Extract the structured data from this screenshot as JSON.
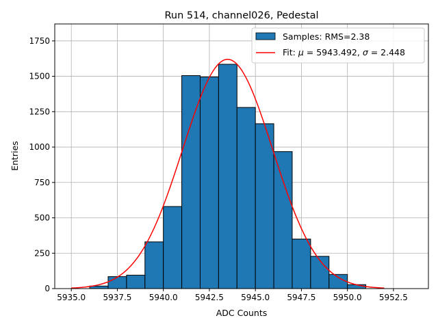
{
  "chart_data": {
    "type": "bar",
    "title": "Run 514, channel026, Pedestal",
    "xlabel": "ADC Counts",
    "ylabel": "Entries",
    "xlim": [
      5934.1,
      5954.4
    ],
    "ylim": [
      0,
      1870
    ],
    "grid": true,
    "legend_position": "top-right",
    "x_ticks": [
      5935.0,
      5937.5,
      5940.0,
      5942.5,
      5945.0,
      5947.5,
      5950.0,
      5952.5
    ],
    "x_tick_labels": [
      "5935.0",
      "5937.5",
      "5940.0",
      "5942.5",
      "5945.0",
      "5947.5",
      "5950.0",
      "5952.5"
    ],
    "y_ticks": [
      0,
      250,
      500,
      750,
      1000,
      1250,
      1500,
      1750
    ],
    "y_tick_labels": [
      "0",
      "250",
      "500",
      "750",
      "1000",
      "1250",
      "1500",
      "1750"
    ],
    "bins": [
      {
        "x0": 5935,
        "x1": 5936,
        "value": 0
      },
      {
        "x0": 5936,
        "x1": 5937,
        "value": 18
      },
      {
        "x0": 5937,
        "x1": 5938,
        "value": 85
      },
      {
        "x0": 5938,
        "x1": 5939,
        "value": 95
      },
      {
        "x0": 5939,
        "x1": 5940,
        "value": 330
      },
      {
        "x0": 5940,
        "x1": 5941,
        "value": 580
      },
      {
        "x0": 5941,
        "x1": 5942,
        "value": 1505
      },
      {
        "x0": 5942,
        "x1": 5943,
        "value": 1495
      },
      {
        "x0": 5943,
        "x1": 5944,
        "value": 1585
      },
      {
        "x0": 5944,
        "x1": 5945,
        "value": 1280
      },
      {
        "x0": 5945,
        "x1": 5946,
        "value": 1165
      },
      {
        "x0": 5946,
        "x1": 5947,
        "value": 968
      },
      {
        "x0": 5947,
        "x1": 5948,
        "value": 350
      },
      {
        "x0": 5948,
        "x1": 5949,
        "value": 228
      },
      {
        "x0": 5949,
        "x1": 5950,
        "value": 100
      },
      {
        "x0": 5950,
        "x1": 5951,
        "value": 28
      },
      {
        "x0": 5951,
        "x1": 5952,
        "value": 0
      },
      {
        "x0": 5952,
        "x1": 5953,
        "value": 0
      }
    ],
    "fit": {
      "mu": 5943.492,
      "sigma": 2.448,
      "amplitude": 1620,
      "x_range": [
        5935,
        5952
      ]
    },
    "series": [
      {
        "name": "Samples: RMS=2.38",
        "kind": "histogram",
        "color": "#1f77b4",
        "edge_color": "#000000"
      },
      {
        "name_prefix": "Fit: ",
        "name_mu": "μ",
        "name_mid": " = 5943.492, ",
        "name_sigma": "σ",
        "name_end": " = 2.448",
        "kind": "line",
        "color": "#ff0000"
      }
    ]
  }
}
